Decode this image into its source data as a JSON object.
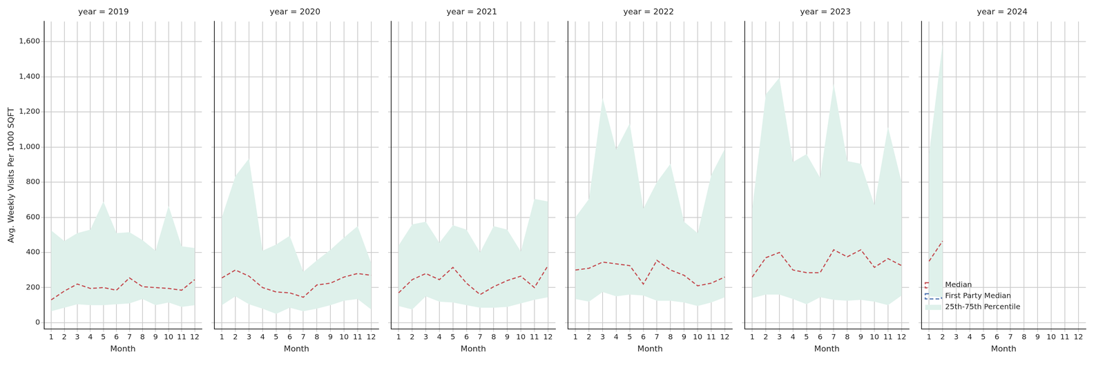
{
  "chart_data": [
    {
      "type": "line",
      "title": "year = 2019",
      "x_label": "Month",
      "y_label": "Avg. Weekly Visits Per 1000 SQFT",
      "x": [
        1,
        2,
        3,
        4,
        5,
        6,
        7,
        8,
        9,
        10,
        11,
        12
      ],
      "xlim": [
        0.45,
        12.55
      ],
      "xticks": [
        1,
        2,
        3,
        4,
        5,
        6,
        7,
        8,
        9,
        10,
        11,
        12
      ],
      "ylim": [
        -35,
        1715
      ],
      "yticks": [
        0,
        200,
        400,
        600,
        800,
        1000,
        1200,
        1400,
        1600
      ],
      "grid": true,
      "series": [
        {
          "name": "Median",
          "color": "#c44e52",
          "line_style": "dashed",
          "values": [
            130,
            180,
            220,
            195,
            200,
            185,
            255,
            205,
            200,
            195,
            185,
            245
          ]
        },
        {
          "name": "First Party Median",
          "color": "#4c72b0",
          "line_style": "dashed",
          "values": [
            null,
            null,
            null,
            null,
            null,
            null,
            null,
            null,
            null,
            null,
            null,
            null
          ]
        },
        {
          "name": "25th-75th Percentile",
          "type": "band",
          "color": "#dff1eb",
          "lower": [
            65,
            85,
            105,
            100,
            100,
            105,
            110,
            135,
            100,
            115,
            90,
            100
          ],
          "upper": [
            525,
            465,
            510,
            530,
            690,
            510,
            515,
            470,
            410,
            665,
            435,
            425
          ]
        }
      ]
    },
    {
      "type": "line",
      "title": "year = 2020",
      "x_label": "Month",
      "x": [
        1,
        2,
        3,
        4,
        5,
        6,
        7,
        8,
        9,
        10,
        11,
        12
      ],
      "xlim": [
        0.45,
        12.55
      ],
      "xticks": [
        1,
        2,
        3,
        4,
        5,
        6,
        7,
        8,
        9,
        10,
        11,
        12
      ],
      "ylim": [
        -35,
        1715
      ],
      "yticks": [
        0,
        200,
        400,
        600,
        800,
        1000,
        1200,
        1400,
        1600
      ],
      "grid": true,
      "tick_labels": "x",
      "series": [
        {
          "name": "Median",
          "color": "#c44e52",
          "line_style": "dashed",
          "values": [
            255,
            300,
            265,
            200,
            175,
            170,
            145,
            215,
            225,
            260,
            280,
            270
          ]
        },
        {
          "name": "First Party Median",
          "color": "#4c72b0",
          "line_style": "dashed",
          "values": [
            null,
            null,
            null,
            null,
            null,
            null,
            null,
            null,
            null,
            null,
            null,
            null
          ]
        },
        {
          "name": "25th-75th Percentile",
          "type": "band",
          "color": "#dff1eb",
          "lower": [
            100,
            150,
            105,
            80,
            50,
            85,
            65,
            80,
            100,
            125,
            135,
            75
          ],
          "upper": [
            600,
            835,
            935,
            410,
            445,
            495,
            290,
            355,
            415,
            485,
            550,
            340
          ]
        }
      ]
    },
    {
      "type": "line",
      "title": "year = 2021",
      "x_label": "Month",
      "x": [
        1,
        2,
        3,
        4,
        5,
        6,
        7,
        8,
        9,
        10,
        11,
        12
      ],
      "xlim": [
        0.45,
        12.55
      ],
      "xticks": [
        1,
        2,
        3,
        4,
        5,
        6,
        7,
        8,
        9,
        10,
        11,
        12
      ],
      "ylim": [
        -35,
        1715
      ],
      "yticks": [
        0,
        200,
        400,
        600,
        800,
        1000,
        1200,
        1400,
        1600
      ],
      "grid": true,
      "tick_labels": "x",
      "series": [
        {
          "name": "Median",
          "color": "#c44e52",
          "line_style": "dashed",
          "values": [
            170,
            245,
            280,
            245,
            315,
            225,
            160,
            205,
            240,
            265,
            200,
            325
          ]
        },
        {
          "name": "First Party Median",
          "color": "#4c72b0",
          "line_style": "dashed",
          "values": [
            null,
            null,
            null,
            null,
            null,
            null,
            null,
            null,
            null,
            null,
            null,
            null
          ]
        },
        {
          "name": "25th-75th Percentile",
          "type": "band",
          "color": "#dff1eb",
          "lower": [
            95,
            75,
            150,
            120,
            115,
            100,
            85,
            85,
            90,
            110,
            130,
            145
          ],
          "upper": [
            440,
            560,
            575,
            455,
            555,
            530,
            400,
            550,
            530,
            405,
            705,
            690
          ]
        }
      ]
    },
    {
      "type": "line",
      "title": "year = 2022",
      "x_label": "Month",
      "x": [
        1,
        2,
        3,
        4,
        5,
        6,
        7,
        8,
        9,
        10,
        11,
        12
      ],
      "xlim": [
        0.45,
        12.55
      ],
      "xticks": [
        1,
        2,
        3,
        4,
        5,
        6,
        7,
        8,
        9,
        10,
        11,
        12
      ],
      "ylim": [
        -35,
        1715
      ],
      "yticks": [
        0,
        200,
        400,
        600,
        800,
        1000,
        1200,
        1400,
        1600
      ],
      "grid": true,
      "tick_labels": "x",
      "series": [
        {
          "name": "Median",
          "color": "#c44e52",
          "line_style": "dashed",
          "values": [
            300,
            310,
            345,
            335,
            325,
            220,
            355,
            300,
            270,
            210,
            225,
            260
          ]
        },
        {
          "name": "First Party Median",
          "color": "#4c72b0",
          "line_style": "dashed",
          "values": [
            null,
            null,
            null,
            null,
            null,
            null,
            null,
            null,
            null,
            null,
            null,
            null
          ]
        },
        {
          "name": "25th-75th Percentile",
          "type": "band",
          "color": "#dff1eb",
          "lower": [
            135,
            120,
            175,
            150,
            160,
            155,
            125,
            125,
            115,
            95,
            115,
            145
          ],
          "upper": [
            600,
            705,
            1280,
            985,
            1135,
            650,
            800,
            905,
            575,
            510,
            840,
            990
          ]
        }
      ]
    },
    {
      "type": "line",
      "title": "year = 2023",
      "x_label": "Month",
      "x": [
        1,
        2,
        3,
        4,
        5,
        6,
        7,
        8,
        9,
        10,
        11,
        12
      ],
      "xlim": [
        0.45,
        12.55
      ],
      "xticks": [
        1,
        2,
        3,
        4,
        5,
        6,
        7,
        8,
        9,
        10,
        11,
        12
      ],
      "ylim": [
        -35,
        1715
      ],
      "yticks": [
        0,
        200,
        400,
        600,
        800,
        1000,
        1200,
        1400,
        1600
      ],
      "grid": true,
      "tick_labels": "x",
      "series": [
        {
          "name": "Median",
          "color": "#c44e52",
          "line_style": "dashed",
          "values": [
            260,
            370,
            400,
            300,
            285,
            285,
            415,
            375,
            415,
            315,
            365,
            325
          ]
        },
        {
          "name": "First Party Median",
          "color": "#4c72b0",
          "line_style": "dashed",
          "values": [
            null,
            null,
            null,
            null,
            null,
            null,
            null,
            null,
            null,
            null,
            null,
            null
          ]
        },
        {
          "name": "25th-75th Percentile",
          "type": "band",
          "color": "#dff1eb",
          "lower": [
            140,
            160,
            160,
            135,
            105,
            145,
            130,
            125,
            130,
            120,
            100,
            155
          ],
          "upper": [
            650,
            1300,
            1395,
            915,
            960,
            825,
            1360,
            920,
            905,
            670,
            1115,
            800
          ]
        }
      ]
    },
    {
      "type": "line",
      "title": "year = 2024",
      "x_label": "Month",
      "x": [
        1,
        2,
        3,
        4,
        5,
        6,
        7,
        8,
        9,
        10,
        11,
        12
      ],
      "xlim": [
        0.45,
        12.55
      ],
      "xticks": [
        1,
        2,
        3,
        4,
        5,
        6,
        7,
        8,
        9,
        10,
        11,
        12
      ],
      "ylim": [
        -35,
        1715
      ],
      "yticks": [
        0,
        200,
        400,
        600,
        800,
        1000,
        1200,
        1400,
        1600
      ],
      "grid": true,
      "tick_labels": "x",
      "legend": "upper right",
      "series": [
        {
          "name": "Median",
          "color": "#c44e52",
          "line_style": "dashed",
          "values": [
            350,
            465,
            null,
            null,
            null,
            null,
            null,
            null,
            null,
            null,
            null,
            null
          ]
        },
        {
          "name": "First Party Median",
          "color": "#4c72b0",
          "line_style": "dashed",
          "values": [
            null,
            null,
            null,
            null,
            null,
            null,
            null,
            null,
            null,
            null,
            null,
            null
          ]
        },
        {
          "name": "25th-75th Percentile",
          "type": "band",
          "color": "#dff1eb",
          "lower": [
            150,
            145,
            null,
            null,
            null,
            null,
            null,
            null,
            null,
            null,
            null,
            null
          ],
          "upper": [
            960,
            1590,
            null,
            null,
            null,
            null,
            null,
            null,
            null,
            null,
            null,
            null
          ]
        }
      ]
    }
  ]
}
